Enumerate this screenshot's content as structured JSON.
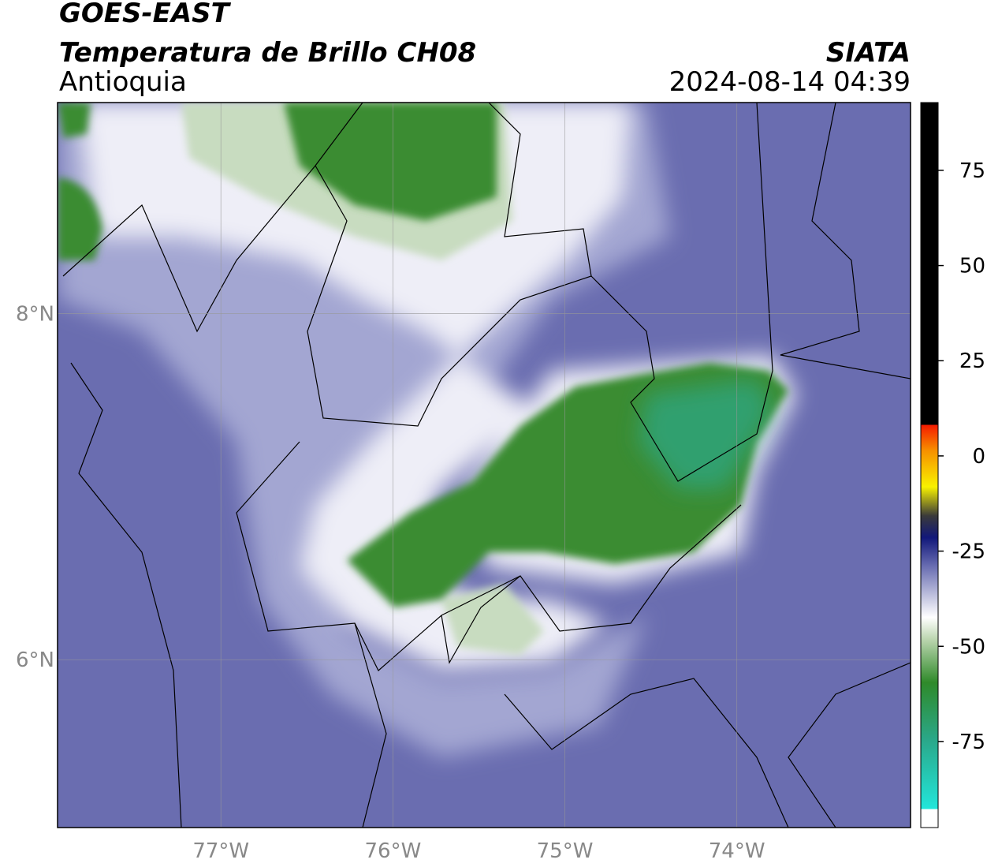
{
  "header": {
    "title": "GOES-EAST",
    "subtitle": "Temperatura de Brillo CH08",
    "region": "Antioquia",
    "source": "SIATA",
    "timestamp": "2024-08-14 04:39"
  },
  "map": {
    "lonlim": [
      -77.95,
      -72.99
    ],
    "latlim": [
      5.03,
      9.22
    ],
    "lonticks": [
      {
        "value": -77,
        "label": "77°W"
      },
      {
        "value": -76,
        "label": "76°W"
      },
      {
        "value": -75,
        "label": "75°W"
      },
      {
        "value": -74,
        "label": "74°W"
      }
    ],
    "latticks": [
      {
        "value": 8,
        "label": "8°N"
      },
      {
        "value": 6,
        "label": "6°N"
      }
    ],
    "grid": true
  },
  "colorbar": {
    "lim": [
      -97.6,
      92.8
    ],
    "ticks": [
      75,
      50,
      25,
      0,
      -25,
      -50,
      -75
    ]
  }
}
